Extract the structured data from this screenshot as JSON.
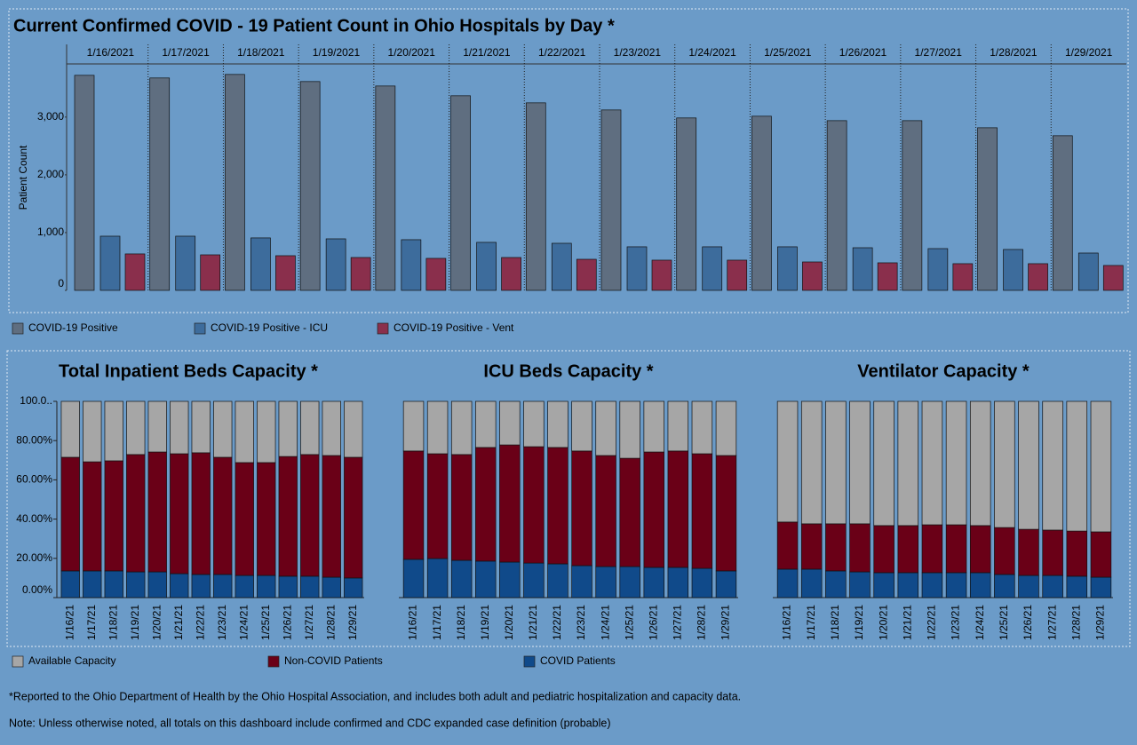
{
  "chart_data": [
    {
      "type": "bar",
      "title": "Current Confirmed COVID - 19 Patient Count in Ohio Hospitals by Day *",
      "y_label": "Patient Count",
      "categories": [
        "1/16/2021",
        "1/17/2021",
        "1/18/2021",
        "1/19/2021",
        "1/20/2021",
        "1/21/2021",
        "1/22/2021",
        "1/23/2021",
        "1/24/2021",
        "1/25/2021",
        "1/26/2021",
        "1/27/2021",
        "1/28/2021",
        "1/29/2021"
      ],
      "series": [
        {
          "name": "COVID-19 Positive",
          "color": "#5f6e80",
          "values": [
            3723,
            3677,
            3738,
            3615,
            3538,
            3369,
            3246,
            3123,
            2985,
            3015,
            2938,
            2938,
            2815,
            2677
          ]
        },
        {
          "name": "COVID-19 Positive - ICU",
          "color": "#3d6c9c",
          "values": [
            938,
            938,
            908,
            892,
            877,
            831,
            815,
            754,
            754,
            754,
            738,
            723,
            708,
            646
          ]
        },
        {
          "name": "COVID-19 Positive - Vent",
          "color": "#8a2f4c",
          "values": [
            631,
            615,
            600,
            569,
            554,
            569,
            538,
            523,
            523,
            492,
            477,
            462,
            462,
            431
          ]
        }
      ],
      "ylim": [
        0,
        3920
      ],
      "yticks": [
        0,
        {
          "value": 1000,
          "label": "1,000"
        },
        {
          "value": 2000,
          "label": "2,000"
        },
        {
          "value": 3000,
          "label": "3,000"
        }
      ]
    },
    {
      "type": "stacked_bar",
      "title": "Total Inpatient Beds Capacity *",
      "categories": [
        "1/16/21",
        "1/17/21",
        "1/18/21",
        "1/19/21",
        "1/20/21",
        "1/21/21",
        "1/22/21",
        "1/23/21",
        "1/24/21",
        "1/25/21",
        "1/26/21",
        "1/27/21",
        "1/28/21",
        "1/29/21"
      ],
      "series": [
        {
          "name": "COVID Patients",
          "color": "#104a8a",
          "values": [
            13.6,
            13.6,
            13.6,
            13.1,
            13.1,
            12.2,
            11.8,
            11.8,
            11.3,
            11.3,
            10.9,
            10.9,
            10.4,
            10.0
          ]
        },
        {
          "name": "Non-COVID Patients",
          "color": "#6a0017",
          "values": [
            57.9,
            55.6,
            56.1,
            59.8,
            61.1,
            61.1,
            62.0,
            59.7,
            57.5,
            57.5,
            61.0,
            62.0,
            62.0,
            61.5
          ]
        },
        {
          "name": "Available Capacity",
          "color": "#a6a6a6",
          "values": [
            28.5,
            30.8,
            30.3,
            27.1,
            25.8,
            26.7,
            26.2,
            28.5,
            31.2,
            31.2,
            28.1,
            27.1,
            27.6,
            28.5
          ]
        }
      ],
      "ylim": [
        0,
        100
      ],
      "yticks": [
        {
          "value": 0,
          "label": "0.00%"
        },
        {
          "value": 20,
          "label": "20.00%"
        },
        {
          "value": 40,
          "label": "40.00%"
        },
        {
          "value": 60,
          "label": "60.00%"
        },
        {
          "value": 80,
          "label": "80.00%"
        },
        {
          "value": 100,
          "label": "100.0.."
        }
      ]
    },
    {
      "type": "stacked_bar",
      "title": "ICU Beds Capacity *",
      "categories": [
        "1/16/21",
        "1/17/21",
        "1/18/21",
        "1/19/21",
        "1/20/21",
        "1/21/21",
        "1/22/21",
        "1/23/21",
        "1/24/21",
        "1/25/21",
        "1/26/21",
        "1/27/21",
        "1/28/21",
        "1/29/21"
      ],
      "series": [
        {
          "color": "#104a8a",
          "values": [
            19.5,
            19.9,
            19.0,
            18.6,
            18.1,
            17.6,
            17.2,
            16.3,
            15.8,
            15.8,
            15.4,
            15.4,
            14.9,
            13.6
          ]
        },
        {
          "color": "#6a0017",
          "values": [
            55.2,
            53.4,
            53.9,
            57.9,
            59.7,
            59.3,
            59.3,
            58.4,
            56.6,
            55.2,
            58.8,
            59.3,
            58.4,
            58.8
          ]
        },
        {
          "color": "#a6a6a6",
          "values": [
            25.3,
            26.7,
            27.1,
            23.5,
            22.2,
            23.1,
            23.5,
            25.3,
            27.6,
            29.0,
            25.8,
            25.3,
            26.7,
            27.6
          ]
        }
      ],
      "ylim": [
        0,
        100
      ]
    },
    {
      "type": "stacked_bar",
      "title": "Ventilator Capacity *",
      "categories": [
        "1/16/21",
        "1/17/21",
        "1/18/21",
        "1/19/21",
        "1/20/21",
        "1/21/21",
        "1/22/21",
        "1/23/21",
        "1/24/21",
        "1/25/21",
        "1/26/21",
        "1/27/21",
        "1/28/21",
        "1/29/21"
      ],
      "series": [
        {
          "color": "#104a8a",
          "values": [
            14.5,
            14.5,
            13.6,
            13.1,
            12.7,
            12.7,
            12.7,
            12.7,
            12.7,
            11.8,
            11.3,
            11.3,
            10.9,
            10.4
          ]
        },
        {
          "color": "#6a0017",
          "values": [
            24.0,
            23.1,
            24.0,
            24.5,
            24.0,
            24.0,
            24.4,
            24.4,
            24.0,
            23.9,
            23.5,
            23.1,
            23.0,
            23.1
          ]
        },
        {
          "color": "#a6a6a6",
          "values": [
            61.5,
            62.4,
            62.4,
            62.4,
            63.3,
            63.3,
            62.9,
            62.9,
            63.3,
            64.3,
            65.2,
            65.6,
            66.1,
            66.5
          ]
        }
      ],
      "ylim": [
        0,
        100
      ]
    }
  ],
  "notes": [
    "*Reported to the Ohio Department of Health by the Ohio Hospital Association, and includes both adult and pediatric hospitalization and capacity data.",
    "Note: Unless otherwise noted, all totals on this dashboard include confirmed and CDC expanded case definition (probable)"
  ]
}
